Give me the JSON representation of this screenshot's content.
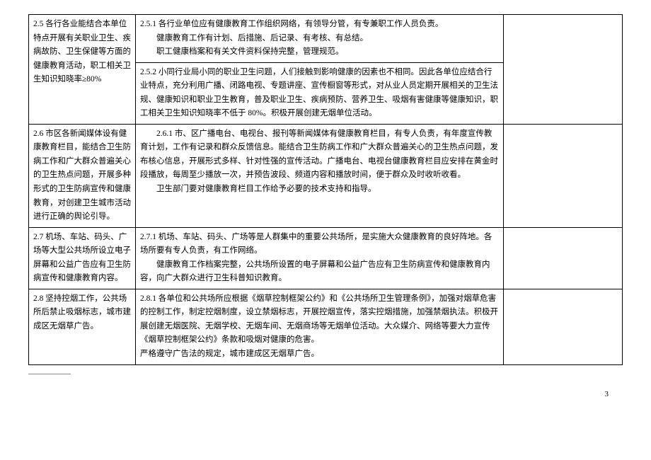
{
  "rows": [
    {
      "col1": "2.5 各行各业能结合本单位特点开展有关职业卫生、疾病故防、卫生保健等方面的健康教育活动，职工相关卫生知识知晓率≥80%",
      "col2_a": "2.5.1 各行业单位应有健康教育工作组织网络，有领导分管，有专兼职工作人员负责。",
      "col2_a2": "健康教育工作有计划、后措施、后记录、有考核、有总结。",
      "col2_a3": "职工健康档案和有关文件资料保持完整，管理规范。",
      "col2_b": "2.5.2 小同行业局小同的职业卫生问题，人们接触到影响健康的因素也不相同。因此各单位应结合行业特点，充分利用广播、闭路电视、专题讲座、宣传橱窗等形式，对从业人员定期开展相关的卫生法规、健康知识和职业卫生教育，普及职业卫生、疾病预防、营养卫生、吸烟有害健康等健康知识，职工相关卫生知识知晓率不低于 80%。积极开展创建无烟单位活动。",
      "col3": ""
    },
    {
      "col1": "2.6 市区各新闻媒体设有健康教育栏目，能结合卫生防病工作和广大群众普遍关心的卫生热点问题，开展多种形式的卫生防病宣传和健康教育，对创建卫生城市活动进行正确的舆论引导。",
      "col2_main": "2.6.1 市、区广播电台、电视台、报刊等新闻媒体有健康教育栏目，有专人负责，有年度宣传教育计划，工作有记录和群众反馈信息。能结合卫生防病工作和广大群众普遍关心的卫生热点问题，发布核心信息，开展形式多样、针对性强的宣传活动。广播电台、电视台健康教育栏目应安排在黄金时段播放，每周至少播放一次，并预告波段、频道内容和播放时间，便于群众及时收听收看。",
      "col2_sub": "卫生部门要对健康教育栏目工作给予必要的技术支持和指导。",
      "col3": ""
    },
    {
      "col1": "2.7 机场、车站、码头、广场等大型公共场所设立电子屏幕和公益广告应有卫生防病宣传和健康教育内容。",
      "col2_main": "2.7.1 机场、车站、码头、广场等是人群集中的重要公共场所，是实施大众健康教育的良好阵地。各场所要有专人负责，有工作网络。",
      "col2_sub": "健康教育工作档案完整，公共场所设置的电子屏幕和公益广告应有卫生防病宣传和健康教育内容，向广大群众进行卫生科普知识教育。",
      "col3": ""
    },
    {
      "col1": "2.8 坚持控烟工作，公共场所后禁止吸烟标志，城市建成区无烟草广告。",
      "col2_main": "2.8.1 各单位和公共场所应根据《烟草控制框架公约》和《公共场所卫生管理条例》，加强对烟草危害的控制工作，制定控烟制度，设立禁烟标志，开展控烟宣传，落实控烟措施，加强禁烟执法。积极开展创建无烟医院、无烟学校、无烟车间、无烟商场等无烟单位活动。大众媒介、网络等要大力宣传《烟草控制框架公约》条款和吸烟对健康的危害。",
      "col2_sub": "严格遵守广告法的规定，城市建成区无烟草广告。",
      "col3": ""
    }
  ],
  "page_number": "3"
}
